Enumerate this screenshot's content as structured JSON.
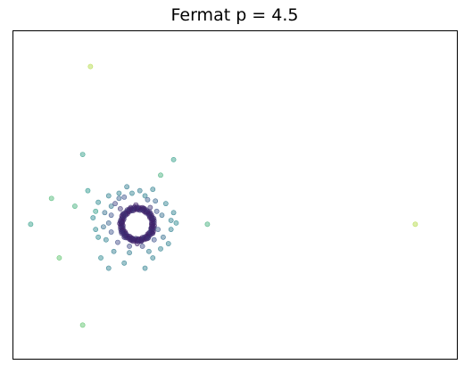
{
  "chart_data": {
    "type": "scatter",
    "title": "Fermat p = 4.5",
    "xlabel": "",
    "ylabel": "",
    "xlim": [
      -4.3,
      12.8
    ],
    "ylim": [
      -5.2,
      7.5
    ],
    "ticks": "none",
    "grid": false,
    "legend": "none",
    "colormap": [
      "#440154",
      "#3b528b",
      "#21918c",
      "#5ec962",
      "#fde725"
    ],
    "point_alpha": 0.45,
    "ring": {
      "center": [
        0.5,
        0.0
      ],
      "radius": 0.62
    },
    "series": [
      {
        "points": [
          [
            -1.3,
            6.1,
            0.88
          ],
          [
            -1.6,
            2.7,
            0.55
          ],
          [
            1.9,
            2.5,
            0.55
          ],
          [
            1.4,
            1.9,
            0.62
          ],
          [
            -1.4,
            1.3,
            0.52
          ],
          [
            -2.8,
            1.0,
            0.66
          ],
          [
            -1.9,
            0.7,
            0.62
          ],
          [
            -3.6,
            0.0,
            0.55
          ],
          [
            -2.5,
            -1.3,
            0.72
          ],
          [
            -1.6,
            -3.9,
            0.72
          ],
          [
            3.2,
            0.0,
            0.62
          ],
          [
            11.2,
            0.0,
            0.88
          ],
          [
            -1.1,
            0.5,
            0.55
          ],
          [
            -1.0,
            0.85,
            0.45
          ],
          [
            -0.5,
            0.7,
            0.38
          ],
          [
            -0.7,
            -0.6,
            0.42
          ],
          [
            -0.9,
            -1.3,
            0.45
          ],
          [
            -0.6,
            -1.7,
            0.42
          ],
          [
            0.0,
            -1.5,
            0.42
          ],
          [
            0.8,
            -1.7,
            0.42
          ],
          [
            1.1,
            -1.3,
            0.42
          ],
          [
            1.8,
            0.15,
            0.42
          ],
          [
            1.9,
            0.45,
            0.42
          ],
          [
            1.8,
            -0.2,
            0.42
          ],
          [
            0.8,
            1.1,
            0.42
          ],
          [
            0.3,
            1.2,
            0.42
          ],
          [
            -0.2,
            1.2,
            0.42
          ],
          [
            -1.1,
            -0.2,
            0.45
          ],
          [
            -1.0,
            -0.5,
            0.45
          ],
          [
            1.4,
            -0.95,
            0.42
          ],
          [
            -0.2,
            1.0,
            0.3
          ],
          [
            1.2,
            0.9,
            0.32
          ],
          [
            0.0,
            1.05,
            0.25
          ],
          [
            0.9,
            0.95,
            0.28
          ],
          [
            1.25,
            0.5,
            0.25
          ],
          [
            1.3,
            -0.2,
            0.28
          ],
          [
            1.15,
            -0.6,
            0.25
          ],
          [
            0.7,
            -0.85,
            0.22
          ],
          [
            0.2,
            -0.85,
            0.22
          ],
          [
            -0.25,
            -0.7,
            0.22
          ],
          [
            -0.35,
            0.8,
            0.2
          ],
          [
            -0.5,
            0.35,
            0.25
          ],
          [
            -0.5,
            -0.3,
            0.25
          ],
          [
            0.45,
            0.75,
            0.1
          ],
          [
            1.05,
            0.25,
            0.12
          ],
          [
            0.5,
            -0.75,
            0.1
          ],
          [
            -0.1,
            0.05,
            0.1
          ],
          [
            -0.15,
            0.6,
            0.15
          ],
          [
            1.0,
            0.65,
            0.15
          ],
          [
            0.9,
            -0.55,
            0.15
          ],
          [
            0.0,
            -0.5,
            0.15
          ],
          [
            0.75,
            0.6,
            0.12
          ],
          [
            1.05,
            -0.15,
            0.12
          ],
          [
            0.25,
            -0.6,
            0.12
          ],
          [
            -0.1,
            -0.35,
            0.15
          ],
          [
            -0.05,
            0.4,
            0.15
          ],
          [
            0.25,
            0.65,
            0.12
          ],
          [
            0.3,
            -0.55,
            0.12
          ],
          [
            1.1,
            -0.35,
            0.12
          ],
          [
            0.65,
            -0.65,
            0.12
          ],
          [
            -0.6,
            0.05,
            0.3
          ],
          [
            -0.75,
            0.45,
            0.35
          ],
          [
            -0.8,
            -0.1,
            0.35
          ],
          [
            1.45,
            0.35,
            0.35
          ],
          [
            1.5,
            -0.5,
            0.35
          ],
          [
            0.6,
            1.3,
            0.4
          ],
          [
            0.2,
            -1.1,
            0.4
          ],
          [
            0.95,
            -1.05,
            0.4
          ],
          [
            -0.4,
            -1.05,
            0.4
          ],
          [
            -0.6,
            1.1,
            0.42
          ],
          [
            1.6,
            0.8,
            0.42
          ],
          [
            1.7,
            -0.75,
            0.42
          ],
          [
            -1.2,
            0.25,
            0.45
          ],
          [
            2.0,
            0.05,
            0.45
          ],
          [
            0.1,
            1.45,
            0.4
          ],
          [
            1.1,
            1.35,
            0.42
          ]
        ]
      }
    ]
  }
}
